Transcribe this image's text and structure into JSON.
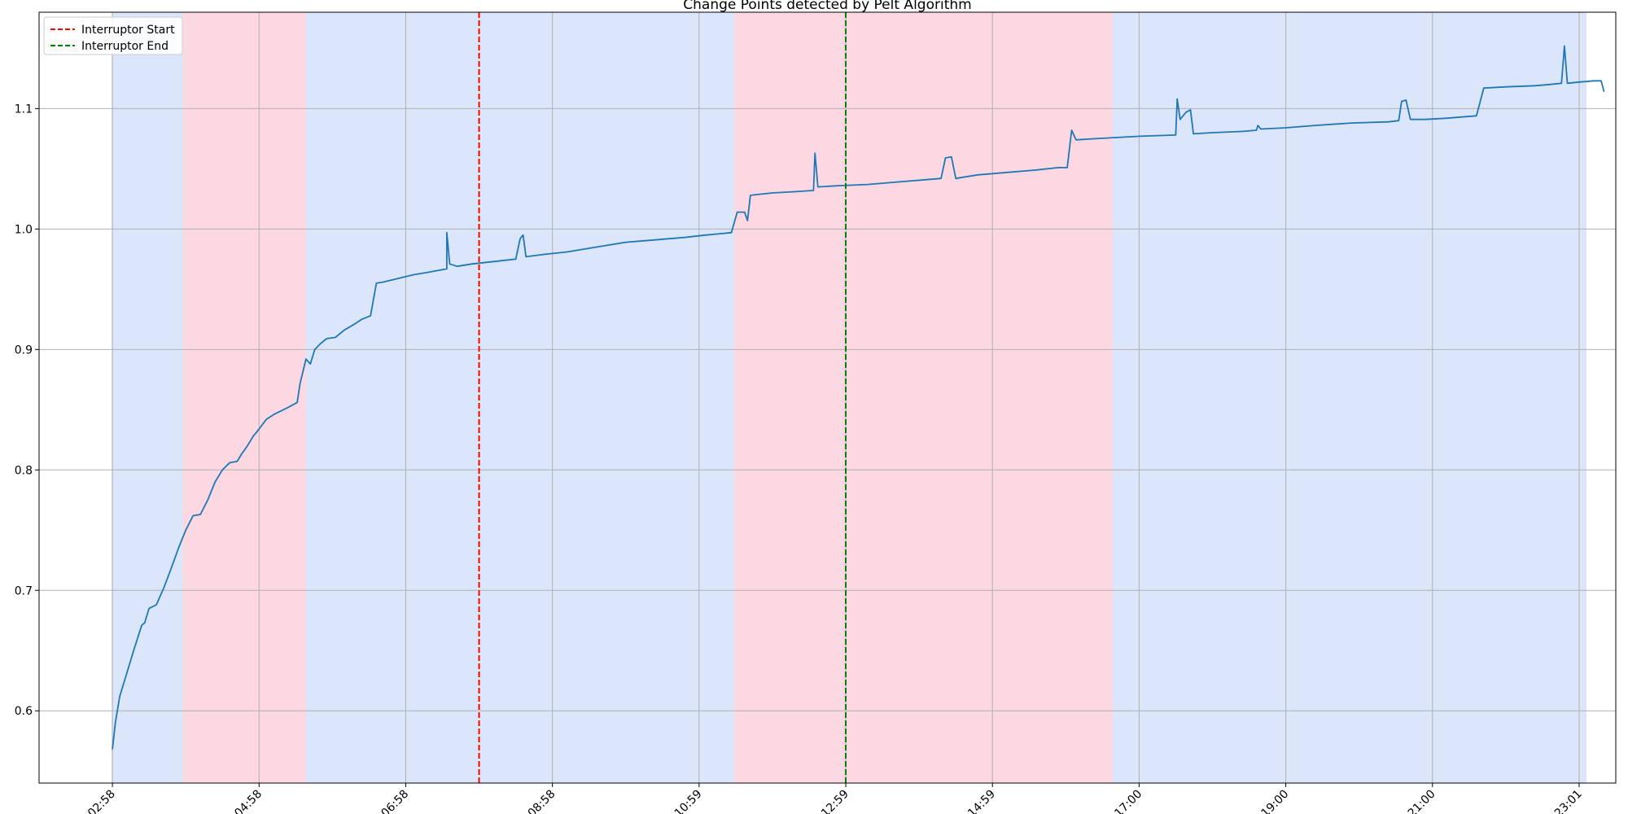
{
  "chart_data": {
    "type": "line",
    "title": "Change Points detected by Pelt Algorithm",
    "xlabel": "",
    "ylabel": "",
    "x_ticks": [
      "02:58",
      "04:58",
      "06:58",
      "08:58",
      "10:59",
      "12:59",
      "14:59",
      "17:00",
      "19:00",
      "21:00",
      "23:01"
    ],
    "x_tick_indices": [
      0,
      1,
      2,
      3,
      4,
      5,
      6,
      7,
      8,
      9,
      10
    ],
    "xlim": [
      -0.5,
      10.25
    ],
    "y_ticks": [
      0.6,
      0.7,
      0.8,
      0.9,
      1.0,
      1.1
    ],
    "ylim": [
      0.54,
      1.18
    ],
    "grid": true,
    "legend_position": "top-left",
    "series": [
      {
        "name": "",
        "color": "#1f77b4",
        "points": [
          [
            0.0,
            0.568
          ],
          [
            0.02,
            0.59
          ],
          [
            0.05,
            0.612
          ],
          [
            0.1,
            0.632
          ],
          [
            0.15,
            0.652
          ],
          [
            0.2,
            0.671
          ],
          [
            0.22,
            0.673
          ],
          [
            0.25,
            0.685
          ],
          [
            0.3,
            0.688
          ],
          [
            0.35,
            0.702
          ],
          [
            0.4,
            0.718
          ],
          [
            0.45,
            0.735
          ],
          [
            0.5,
            0.75
          ],
          [
            0.55,
            0.762
          ],
          [
            0.6,
            0.763
          ],
          [
            0.65,
            0.775
          ],
          [
            0.7,
            0.79
          ],
          [
            0.75,
            0.8
          ],
          [
            0.8,
            0.806
          ],
          [
            0.85,
            0.807
          ],
          [
            0.88,
            0.813
          ],
          [
            0.92,
            0.82
          ],
          [
            0.96,
            0.828
          ],
          [
            1.0,
            0.834
          ],
          [
            1.05,
            0.842
          ],
          [
            1.1,
            0.846
          ],
          [
            1.15,
            0.849
          ],
          [
            1.2,
            0.852
          ],
          [
            1.26,
            0.856
          ],
          [
            1.28,
            0.872
          ],
          [
            1.32,
            0.892
          ],
          [
            1.35,
            0.888
          ],
          [
            1.38,
            0.9
          ],
          [
            1.42,
            0.905
          ],
          [
            1.46,
            0.909
          ],
          [
            1.52,
            0.91
          ],
          [
            1.58,
            0.916
          ],
          [
            1.65,
            0.921
          ],
          [
            1.7,
            0.925
          ],
          [
            1.76,
            0.928
          ],
          [
            1.8,
            0.955
          ],
          [
            1.85,
            0.956
          ],
          [
            1.95,
            0.959
          ],
          [
            2.05,
            0.962
          ],
          [
            2.15,
            0.964
          ],
          [
            2.28,
            0.967
          ],
          [
            2.28,
            0.997
          ],
          [
            2.3,
            0.971
          ],
          [
            2.35,
            0.969
          ],
          [
            2.45,
            0.971
          ],
          [
            2.6,
            0.973
          ],
          [
            2.75,
            0.975
          ],
          [
            2.78,
            0.992
          ],
          [
            2.8,
            0.995
          ],
          [
            2.82,
            0.977
          ],
          [
            2.95,
            0.979
          ],
          [
            3.1,
            0.981
          ],
          [
            3.3,
            0.985
          ],
          [
            3.5,
            0.989
          ],
          [
            3.7,
            0.991
          ],
          [
            3.9,
            0.993
          ],
          [
            4.05,
            0.995
          ],
          [
            4.22,
            0.997
          ],
          [
            4.26,
            1.014
          ],
          [
            4.31,
            1.014
          ],
          [
            4.33,
            1.007
          ],
          [
            4.35,
            1.028
          ],
          [
            4.5,
            1.03
          ],
          [
            4.65,
            1.031
          ],
          [
            4.78,
            1.032
          ],
          [
            4.79,
            1.063
          ],
          [
            4.81,
            1.035
          ],
          [
            4.95,
            1.036
          ],
          [
            5.15,
            1.037
          ],
          [
            5.35,
            1.039
          ],
          [
            5.55,
            1.041
          ],
          [
            5.65,
            1.042
          ],
          [
            5.68,
            1.059
          ],
          [
            5.72,
            1.06
          ],
          [
            5.75,
            1.042
          ],
          [
            5.9,
            1.045
          ],
          [
            6.1,
            1.047
          ],
          [
            6.3,
            1.049
          ],
          [
            6.45,
            1.051
          ],
          [
            6.51,
            1.051
          ],
          [
            6.54,
            1.082
          ],
          [
            6.57,
            1.074
          ],
          [
            6.7,
            1.075
          ],
          [
            6.85,
            1.076
          ],
          [
            7.0,
            1.077
          ],
          [
            7.25,
            1.078
          ],
          [
            7.26,
            1.108
          ],
          [
            7.28,
            1.091
          ],
          [
            7.32,
            1.097
          ],
          [
            7.35,
            1.099
          ],
          [
            7.37,
            1.079
          ],
          [
            7.5,
            1.08
          ],
          [
            7.7,
            1.081
          ],
          [
            7.8,
            1.082
          ],
          [
            7.81,
            1.086
          ],
          [
            7.83,
            1.083
          ],
          [
            8.0,
            1.084
          ],
          [
            8.2,
            1.086
          ],
          [
            8.45,
            1.088
          ],
          [
            8.7,
            1.089
          ],
          [
            8.77,
            1.09
          ],
          [
            8.79,
            1.106
          ],
          [
            8.82,
            1.107
          ],
          [
            8.85,
            1.091
          ],
          [
            8.95,
            1.091
          ],
          [
            9.1,
            1.092
          ],
          [
            9.2,
            1.093
          ],
          [
            9.3,
            1.094
          ],
          [
            9.35,
            1.117
          ],
          [
            9.5,
            1.118
          ],
          [
            9.7,
            1.119
          ],
          [
            9.8,
            1.12
          ],
          [
            9.88,
            1.121
          ],
          [
            9.9,
            1.152
          ],
          [
            9.92,
            1.121
          ],
          [
            10.0,
            1.122
          ],
          [
            10.1,
            1.123
          ],
          [
            10.15,
            1.123
          ],
          [
            10.17,
            1.114
          ]
        ]
      }
    ],
    "regions": [
      {
        "start": -0.005,
        "end": 0.48,
        "color": "#dbe6fa"
      },
      {
        "start": 0.48,
        "end": 1.32,
        "color": "#fcd8e2"
      },
      {
        "start": 1.32,
        "end": 4.24,
        "color": "#dbe6fa"
      },
      {
        "start": 4.24,
        "end": 6.82,
        "color": "#fcd8e2"
      },
      {
        "start": 6.82,
        "end": 10.05,
        "color": "#dbe6fa"
      }
    ],
    "vlines": [
      {
        "name": "Interruptor Start",
        "x": 2.5,
        "color": "#ff0000"
      },
      {
        "name": "Interruptor End",
        "x": 5.0,
        "color": "#008000"
      }
    ]
  }
}
